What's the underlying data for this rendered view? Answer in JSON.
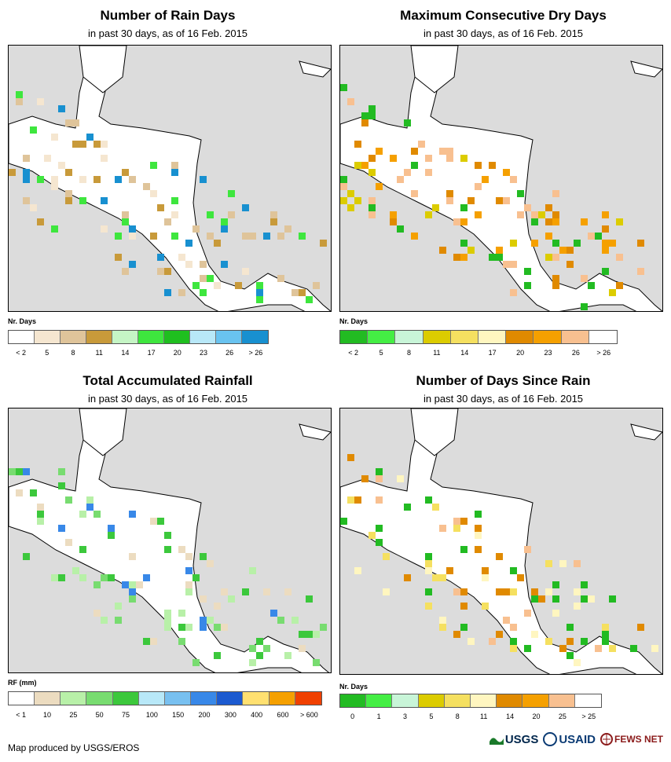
{
  "panels": [
    {
      "title": "Number of Rain Days",
      "subtitle": "in past 30 days, as of 16 Feb. 2015",
      "legend_label": "Nr. Days",
      "legend_colors": [
        "#ffffff",
        "#f5e6d0",
        "#dfc49a",
        "#c89a3a",
        "#c5f5c5",
        "#3ee63e",
        "#1fbf1f",
        "#b8e8f8",
        "#69c3f0",
        "#1890d0"
      ],
      "legend_ticks": [
        "< 2",
        "5",
        "8",
        "11",
        "14",
        "17",
        "20",
        "23",
        "26",
        "> 26"
      ],
      "palette": [
        "#f5e6d0",
        "#dfc49a",
        "#c89a3a",
        "#3ee63e",
        "#1890d0"
      ]
    },
    {
      "title": "Maximum Consecutive Dry Days",
      "subtitle": "in past 30 days, as of 16 Feb. 2015",
      "legend_label": "Nr. Days",
      "legend_colors": [
        "#22bb22",
        "#44ee44",
        "#c8f5d8",
        "#dccc00",
        "#f5e060",
        "#fff6c0",
        "#e08a00",
        "#f5a000",
        "#f8c090",
        "#ffffff"
      ],
      "legend_ticks": [
        "< 2",
        "5",
        "8",
        "11",
        "14",
        "17",
        "20",
        "23",
        "26",
        "> 26"
      ],
      "palette": [
        "#f5a000",
        "#e08a00",
        "#dccc00",
        "#f8c090",
        "#22bb22"
      ]
    },
    {
      "title": "Total Accumulated Rainfall",
      "subtitle": "in past 30 days, as of 16 Feb. 2015",
      "legend_label": "RF (mm)",
      "legend_colors": [
        "#ffffff",
        "#ecdcc0",
        "#b8f0a8",
        "#78dc70",
        "#3cc83c",
        "#b8e8f8",
        "#78c0f0",
        "#3888e8",
        "#1c5ad0",
        "#ffe070",
        "#f5a000",
        "#f04000"
      ],
      "legend_ticks": [
        "< 1",
        "10",
        "25",
        "50",
        "75",
        "100",
        "150",
        "200",
        "300",
        "400",
        "600",
        "> 600"
      ],
      "palette": [
        "#b8f0a8",
        "#78dc70",
        "#3cc83c",
        "#3888e8",
        "#ecdcc0"
      ]
    },
    {
      "title": "Number of Days Since Rain",
      "subtitle": "in past 30 days, as of 16 Feb. 2015",
      "legend_label": "Nr. Days",
      "legend_colors": [
        "#22bb22",
        "#44ee44",
        "#c8f5d8",
        "#dccc00",
        "#f5e060",
        "#fff6c0",
        "#e08a00",
        "#f5a000",
        "#f8c090",
        "#ffffff"
      ],
      "legend_ticks": [
        "0",
        "1",
        "3",
        "5",
        "8",
        "11",
        "14",
        "20",
        "25",
        "> 25"
      ],
      "palette": [
        "#f5e060",
        "#fff6c0",
        "#e08a00",
        "#f8c090",
        "#22bb22"
      ]
    }
  ],
  "footer": {
    "credit": "Map produced by USGS/EROS",
    "logos": [
      "USGS",
      "USAID",
      "FEWS NET"
    ]
  }
}
